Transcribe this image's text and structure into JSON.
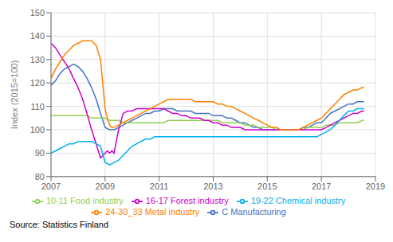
{
  "chart_data": {
    "type": "line",
    "ylabel": "Index (2015=100)",
    "source": "Source: Statistics Finland",
    "xlim": [
      2007.0,
      2019.0
    ],
    "xticks": [
      2007,
      2009,
      2011,
      2013,
      2015,
      2017,
      2019
    ],
    "ylim": [
      80,
      150
    ],
    "yticks": [
      80,
      90,
      100,
      110,
      120,
      130,
      140,
      150
    ],
    "grid": true,
    "legend": "bottom",
    "series": [
      {
        "name": "C Manufacturing",
        "color": "#4472C4",
        "x": [
          2007.0,
          2007.17,
          2007.33,
          2007.5,
          2007.67,
          2007.83,
          2008.0,
          2008.17,
          2008.33,
          2008.5,
          2008.67,
          2008.83,
          2009.0,
          2009.17,
          2009.33,
          2009.5,
          2009.67,
          2009.83,
          2010.0,
          2010.17,
          2010.33,
          2010.5,
          2010.67,
          2010.83,
          2011.0,
          2011.17,
          2011.33,
          2011.5,
          2011.67,
          2011.83,
          2012.0,
          2012.17,
          2012.33,
          2012.5,
          2012.67,
          2012.83,
          2013.0,
          2013.17,
          2013.33,
          2013.5,
          2013.67,
          2013.83,
          2014.0,
          2014.17,
          2014.33,
          2014.5,
          2014.67,
          2014.83,
          2015.0,
          2015.17,
          2015.33,
          2015.5,
          2015.67,
          2015.83,
          2016.0,
          2016.17,
          2016.33,
          2016.5,
          2016.67,
          2016.83,
          2017.0,
          2017.17,
          2017.33,
          2017.5,
          2017.67,
          2017.83,
          2018.0,
          2018.17,
          2018.33,
          2018.5,
          2018.58
        ],
        "values": [
          119,
          121,
          124,
          126,
          127,
          128,
          127,
          125,
          122,
          118,
          113,
          107,
          101,
          100,
          100,
          101,
          102,
          103,
          104,
          105,
          106,
          107,
          107,
          108,
          108,
          109,
          109,
          109,
          108,
          108,
          108,
          108,
          107,
          107,
          107,
          107,
          106,
          106,
          106,
          105,
          105,
          104,
          103,
          103,
          102,
          101,
          101,
          100,
          100,
          100,
          100,
          100,
          100,
          100,
          100,
          100,
          101,
          101,
          102,
          103,
          103,
          105,
          107,
          108,
          109,
          110,
          111,
          111,
          112,
          112,
          112
        ]
      },
      {
        "name": "10-11 Food industry",
        "color": "#92D050",
        "x": [
          2007.0,
          2007.17,
          2007.33,
          2007.5,
          2007.67,
          2007.83,
          2008.0,
          2008.17,
          2008.33,
          2008.5,
          2008.67,
          2008.83,
          2009.0,
          2009.17,
          2009.33,
          2009.5,
          2009.67,
          2009.83,
          2010.0,
          2010.17,
          2010.33,
          2010.5,
          2010.67,
          2010.83,
          2011.0,
          2011.17,
          2011.33,
          2011.5,
          2011.67,
          2011.83,
          2012.0,
          2012.17,
          2012.33,
          2012.5,
          2012.67,
          2012.83,
          2013.0,
          2013.17,
          2013.33,
          2013.5,
          2013.67,
          2013.83,
          2014.0,
          2014.17,
          2014.33,
          2014.5,
          2014.67,
          2014.83,
          2015.0,
          2015.17,
          2015.33,
          2015.5,
          2015.67,
          2015.83,
          2016.0,
          2016.17,
          2016.33,
          2016.5,
          2016.67,
          2016.83,
          2017.0,
          2017.17,
          2017.33,
          2017.5,
          2017.67,
          2017.83,
          2018.0,
          2018.17,
          2018.33,
          2018.5,
          2018.58
        ],
        "values": [
          106,
          106,
          106,
          106,
          106,
          106,
          106,
          106,
          106,
          105,
          105,
          105,
          105,
          104,
          104,
          104,
          103,
          103,
          103,
          103,
          103,
          103,
          103,
          103,
          103,
          103,
          104,
          104,
          104,
          104,
          104,
          104,
          104,
          104,
          104,
          104,
          104,
          104,
          103,
          103,
          103,
          103,
          103,
          102,
          102,
          102,
          101,
          101,
          101,
          101,
          100,
          100,
          100,
          100,
          100,
          100,
          100,
          101,
          101,
          101,
          101,
          102,
          102,
          102,
          103,
          103,
          103,
          103,
          103,
          104,
          104
        ]
      },
      {
        "name": "16-17 Forest industry",
        "color": "#CC00CC",
        "x": [
          2007.0,
          2007.17,
          2007.33,
          2007.5,
          2007.67,
          2007.83,
          2008.0,
          2008.17,
          2008.33,
          2008.5,
          2008.67,
          2008.83,
          2009.0,
          2009.08,
          2009.17,
          2009.25,
          2009.33,
          2009.5,
          2009.67,
          2009.83,
          2010.0,
          2010.17,
          2010.33,
          2010.5,
          2010.67,
          2010.83,
          2011.0,
          2011.17,
          2011.33,
          2011.5,
          2011.67,
          2011.83,
          2012.0,
          2012.17,
          2012.33,
          2012.5,
          2012.67,
          2012.83,
          2013.0,
          2013.17,
          2013.33,
          2013.5,
          2013.67,
          2013.83,
          2014.0,
          2014.17,
          2014.33,
          2014.5,
          2014.67,
          2014.83,
          2015.0,
          2015.17,
          2015.33,
          2015.5,
          2015.67,
          2015.83,
          2016.0,
          2016.17,
          2016.33,
          2016.5,
          2016.67,
          2016.83,
          2017.0,
          2017.17,
          2017.33,
          2017.5,
          2017.67,
          2017.83,
          2018.0,
          2018.17,
          2018.33,
          2018.5,
          2018.58
        ],
        "values": [
          137,
          135,
          132,
          129,
          126,
          122,
          118,
          113,
          107,
          100,
          94,
          88,
          90,
          91,
          90,
          91,
          90,
          100,
          107,
          108,
          108,
          109,
          109,
          109,
          109,
          109,
          109,
          109,
          108,
          107,
          107,
          106,
          106,
          105,
          105,
          105,
          104,
          104,
          103,
          103,
          102,
          102,
          101,
          101,
          101,
          100,
          100,
          100,
          100,
          100,
          100,
          100,
          100,
          100,
          100,
          100,
          100,
          100,
          100,
          100,
          100,
          100,
          100,
          101,
          102,
          103,
          104,
          105,
          106,
          107,
          107,
          108,
          108
        ]
      },
      {
        "name": "19-22 Chemical industry",
        "color": "#00B0F0",
        "x": [
          2007.0,
          2007.17,
          2007.33,
          2007.5,
          2007.67,
          2007.83,
          2008.0,
          2008.17,
          2008.33,
          2008.5,
          2008.67,
          2008.83,
          2009.0,
          2009.17,
          2009.33,
          2009.5,
          2009.67,
          2009.83,
          2010.0,
          2010.17,
          2010.33,
          2010.5,
          2010.67,
          2010.83,
          2011.0,
          2011.17,
          2011.33,
          2011.5,
          2011.67,
          2011.83,
          2012.0,
          2012.17,
          2012.33,
          2012.5,
          2012.67,
          2012.83,
          2013.0,
          2013.17,
          2013.33,
          2013.5,
          2013.67,
          2013.83,
          2014.0,
          2014.17,
          2014.33,
          2014.5,
          2014.67,
          2014.83,
          2015.0,
          2015.17,
          2015.33,
          2015.5,
          2015.67,
          2015.83,
          2016.0,
          2016.17,
          2016.33,
          2016.5,
          2016.67,
          2016.83,
          2017.0,
          2017.17,
          2017.33,
          2017.5,
          2017.67,
          2017.83,
          2018.0,
          2018.17,
          2018.33,
          2018.5,
          2018.58
        ],
        "values": [
          90,
          91,
          92,
          93,
          94,
          94,
          95,
          95,
          95,
          95,
          94,
          93,
          86,
          85,
          86,
          87,
          89,
          91,
          93,
          94,
          95,
          96,
          96,
          97,
          97,
          97,
          97,
          97,
          97,
          97,
          97,
          97,
          97,
          97,
          97,
          97,
          97,
          97,
          97,
          97,
          97,
          97,
          97,
          97,
          97,
          97,
          97,
          97,
          97,
          97,
          97,
          97,
          97,
          97,
          97,
          97,
          97,
          97,
          97,
          97,
          98,
          99,
          100,
          102,
          104,
          106,
          108,
          108,
          109,
          109,
          109
        ]
      },
      {
        "name": "24-30_33 Metal industry",
        "color": "#FF8000",
        "x": [
          2007.0,
          2007.17,
          2007.33,
          2007.5,
          2007.67,
          2007.83,
          2008.0,
          2008.17,
          2008.33,
          2008.5,
          2008.67,
          2008.83,
          2009.0,
          2009.08,
          2009.17,
          2009.25,
          2009.33,
          2009.5,
          2009.67,
          2009.83,
          2010.0,
          2010.17,
          2010.33,
          2010.5,
          2010.67,
          2010.83,
          2011.0,
          2011.17,
          2011.33,
          2011.5,
          2011.67,
          2011.83,
          2012.0,
          2012.17,
          2012.33,
          2012.5,
          2012.67,
          2012.83,
          2013.0,
          2013.17,
          2013.33,
          2013.5,
          2013.67,
          2013.83,
          2014.0,
          2014.17,
          2014.33,
          2014.5,
          2014.67,
          2014.83,
          2015.0,
          2015.17,
          2015.33,
          2015.5,
          2015.67,
          2015.83,
          2016.0,
          2016.17,
          2016.33,
          2016.5,
          2016.67,
          2016.83,
          2017.0,
          2017.17,
          2017.33,
          2017.5,
          2017.67,
          2017.83,
          2018.0,
          2018.17,
          2018.33,
          2018.5,
          2018.58
        ],
        "values": [
          122,
          126,
          129,
          132,
          134,
          136,
          137,
          138,
          138,
          138,
          136,
          130,
          109,
          105,
          102,
          101,
          101,
          102,
          103,
          104,
          105,
          106,
          107,
          108,
          109,
          110,
          111,
          112,
          113,
          113,
          113,
          113,
          113,
          113,
          112,
          112,
          112,
          112,
          112,
          111,
          111,
          110,
          110,
          109,
          108,
          107,
          106,
          105,
          104,
          103,
          102,
          101,
          101,
          100,
          100,
          100,
          100,
          100,
          101,
          102,
          103,
          104,
          105,
          107,
          109,
          111,
          113,
          115,
          116,
          117,
          117,
          118,
          118
        ]
      }
    ]
  }
}
